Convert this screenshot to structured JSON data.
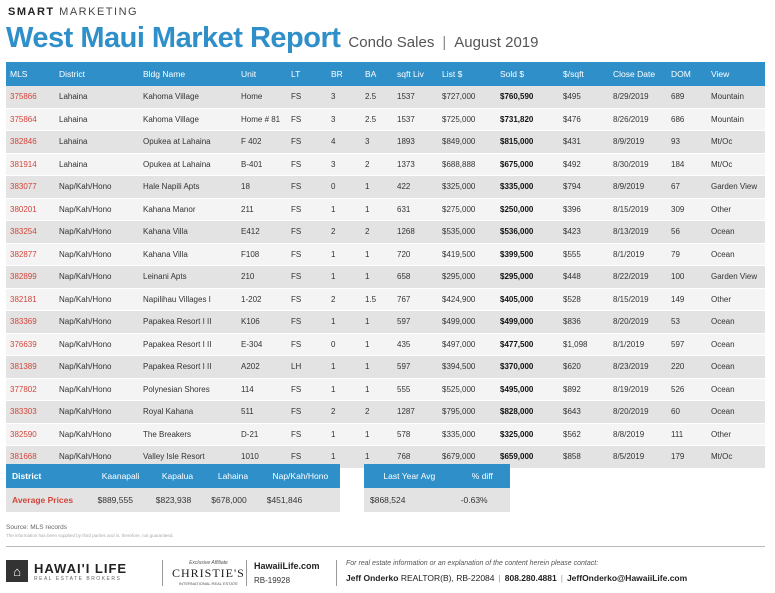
{
  "brand": {
    "bold": "SMART",
    "rest": "MARKETING"
  },
  "title": "West Maui Market Report",
  "subtitle_a": "Condo Sales",
  "subtitle_b": "August 2019",
  "columns": [
    "MLS",
    "District",
    "Bldg Name",
    "Unit",
    "LT",
    "BR",
    "BA",
    "sqft Liv",
    "List $",
    "Sold $",
    "$/sqft",
    "Close Date",
    "DOM",
    "View"
  ],
  "rows": [
    [
      "375866",
      "Lahaina",
      "Kahoma Village",
      "Home",
      "FS",
      "3",
      "2.5",
      "1537",
      "$727,000",
      "$760,590",
      "$495",
      "8/29/2019",
      "689",
      "Mountain"
    ],
    [
      "375864",
      "Lahaina",
      "Kahoma Village",
      "Home # 81",
      "FS",
      "3",
      "2.5",
      "1537",
      "$725,000",
      "$731,820",
      "$476",
      "8/26/2019",
      "686",
      "Mountain"
    ],
    [
      "382846",
      "Lahaina",
      "Opukea at Lahaina",
      "F 402",
      "FS",
      "4",
      "3",
      "1893",
      "$849,000",
      "$815,000",
      "$431",
      "8/9/2019",
      "93",
      "Mt/Oc"
    ],
    [
      "381914",
      "Lahaina",
      "Opukea at Lahaina",
      "B-401",
      "FS",
      "3",
      "2",
      "1373",
      "$688,888",
      "$675,000",
      "$492",
      "8/30/2019",
      "184",
      "Mt/Oc"
    ],
    [
      "383077",
      "Nap/Kah/Hono",
      "Hale Napili Apts",
      "18",
      "FS",
      "0",
      "1",
      "422",
      "$325,000",
      "$335,000",
      "$794",
      "8/9/2019",
      "67",
      "Garden View"
    ],
    [
      "380201",
      "Nap/Kah/Hono",
      "Kahana Manor",
      "211",
      "FS",
      "1",
      "1",
      "631",
      "$275,000",
      "$250,000",
      "$396",
      "8/15/2019",
      "309",
      "Other"
    ],
    [
      "383254",
      "Nap/Kah/Hono",
      "Kahana Villa",
      "E412",
      "FS",
      "2",
      "2",
      "1268",
      "$535,000",
      "$536,000",
      "$423",
      "8/13/2019",
      "56",
      "Ocean"
    ],
    [
      "382877",
      "Nap/Kah/Hono",
      "Kahana Villa",
      "F108",
      "FS",
      "1",
      "1",
      "720",
      "$419,500",
      "$399,500",
      "$555",
      "8/1/2019",
      "79",
      "Ocean"
    ],
    [
      "382899",
      "Nap/Kah/Hono",
      "Leinani Apts",
      "210",
      "FS",
      "1",
      "1",
      "658",
      "$295,000",
      "$295,000",
      "$448",
      "8/22/2019",
      "100",
      "Garden View"
    ],
    [
      "382181",
      "Nap/Kah/Hono",
      "Napilihau Villages I",
      "1-202",
      "FS",
      "2",
      "1.5",
      "767",
      "$424,900",
      "$405,000",
      "$528",
      "8/15/2019",
      "149",
      "Other"
    ],
    [
      "383369",
      "Nap/Kah/Hono",
      "Papakea Resort I II",
      "K106",
      "FS",
      "1",
      "1",
      "597",
      "$499,000",
      "$499,000",
      "$836",
      "8/20/2019",
      "53",
      "Ocean"
    ],
    [
      "376639",
      "Nap/Kah/Hono",
      "Papakea Resort I II",
      "E-304",
      "FS",
      "0",
      "1",
      "435",
      "$497,000",
      "$477,500",
      "$1,098",
      "8/1/2019",
      "597",
      "Ocean"
    ],
    [
      "381389",
      "Nap/Kah/Hono",
      "Papakea Resort I II",
      "A202",
      "LH",
      "1",
      "1",
      "597",
      "$394,500",
      "$370,000",
      "$620",
      "8/23/2019",
      "220",
      "Ocean"
    ],
    [
      "377802",
      "Nap/Kah/Hono",
      "Polynesian Shores",
      "114",
      "FS",
      "1",
      "1",
      "555",
      "$525,000",
      "$495,000",
      "$892",
      "8/19/2019",
      "526",
      "Ocean"
    ],
    [
      "383303",
      "Nap/Kah/Hono",
      "Royal Kahana",
      "511",
      "FS",
      "2",
      "2",
      "1287",
      "$795,000",
      "$828,000",
      "$643",
      "8/20/2019",
      "60",
      "Ocean"
    ],
    [
      "382590",
      "Nap/Kah/Hono",
      "The Breakers",
      "D-21",
      "FS",
      "1",
      "1",
      "578",
      "$335,000",
      "$325,000",
      "$562",
      "8/8/2019",
      "111",
      "Other"
    ],
    [
      "381668",
      "Nap/Kah/Hono",
      "Valley Isle Resort",
      "1010",
      "FS",
      "1",
      "1",
      "768",
      "$679,000",
      "$659,000",
      "$858",
      "8/5/2019",
      "179",
      "Mt/Oc"
    ]
  ],
  "summary": {
    "head": [
      "District",
      "Kaanapali",
      "Kapalua",
      "Lahaina",
      "Nap/Kah/Hono"
    ],
    "values": [
      "Average Prices",
      "$889,555",
      "$823,938",
      "$678,000",
      "$451,846"
    ]
  },
  "lastyear": {
    "head": [
      "Last Year Avg",
      "% diff"
    ],
    "values": [
      "$868,524",
      "-0.63%"
    ]
  },
  "source": "Source: MLS records",
  "disclaimer": "The information has been supplied by third parties and is, therefore, not guaranteed.",
  "footer": {
    "logo_name": "HAWAI'I LIFE",
    "logo_sub": "REAL ESTATE BROKERS",
    "christies_ex": "Exclusive Affiliate",
    "christies_name": "CHRISTIE'S",
    "christies_sub": "INTERNATIONAL REAL ESTATE",
    "site": "HawaiiLife.com",
    "rb": "RB-19928",
    "contact_intro": "For real estate information or an explanation of the content herein please contact:",
    "agent": "Jeff Onderko",
    "agent_title": "REALTOR(B), RB-22084",
    "phone": "808.280.4881",
    "email": "JeffOnderko@HawaiiLife.com"
  }
}
